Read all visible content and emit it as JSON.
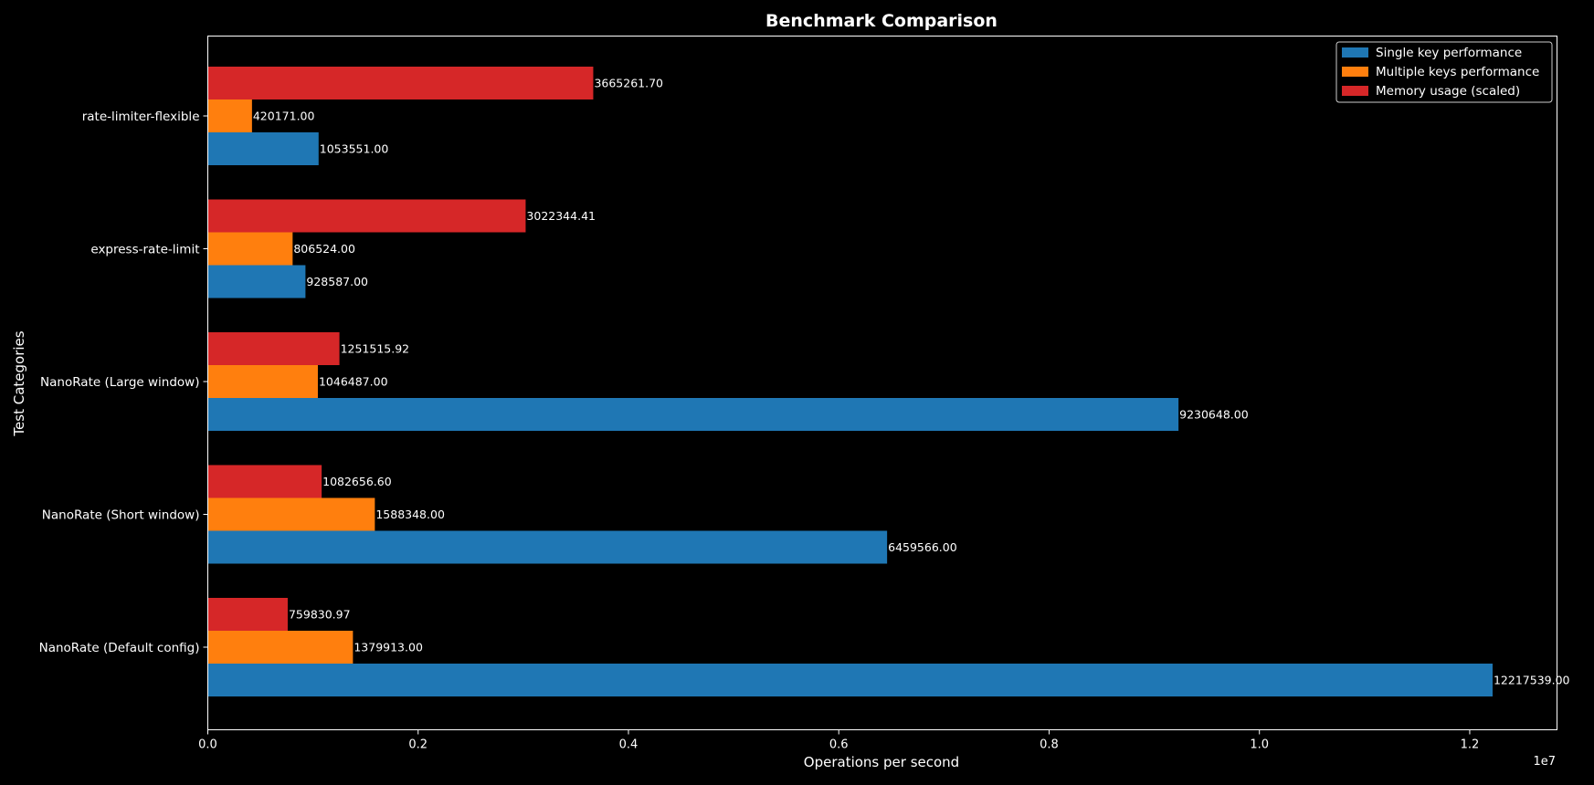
{
  "chart_data": {
    "type": "bar",
    "orientation": "horizontal",
    "title": "Benchmark Comparison",
    "xlabel": "Operations per second",
    "ylabel": "Test Categories",
    "x_offset_text": "1e7",
    "xlim": [
      0,
      12830000
    ],
    "x_ticks": [
      0,
      2000000,
      4000000,
      6000000,
      8000000,
      10000000,
      12000000
    ],
    "x_tick_labels": [
      "0.0",
      "0.2",
      "0.4",
      "0.6",
      "0.8",
      "1.0",
      "1.2"
    ],
    "grid": false,
    "legend_position": "top-right",
    "categories": [
      "NanoRate (Default config)",
      "NanoRate (Short window)",
      "NanoRate (Large window)",
      "express-rate-limit",
      "rate-limiter-flexible"
    ],
    "series": [
      {
        "name": "Single key performance",
        "color": "#1f77b4",
        "values": [
          12217539.0,
          6459566.0,
          9230648.0,
          928587.0,
          1053551.0
        ],
        "labels": [
          "12217539.00",
          "6459566.00",
          "9230648.00",
          "928587.00",
          "1053551.00"
        ]
      },
      {
        "name": "Multiple keys performance",
        "color": "#ff7f0e",
        "values": [
          1379913.0,
          1588348.0,
          1046487.0,
          806524.0,
          420171.0
        ],
        "labels": [
          "1379913.00",
          "1588348.00",
          "1046487.00",
          "806524.00",
          "420171.00"
        ]
      },
      {
        "name": "Memory usage (scaled)",
        "color": "#d62728",
        "values": [
          759830.97,
          1082656.6,
          1251515.92,
          3022344.41,
          3665261.7
        ],
        "labels": [
          "759830.97",
          "1082656.60",
          "1251515.92",
          "3022344.41",
          "3665261.70"
        ]
      }
    ]
  }
}
